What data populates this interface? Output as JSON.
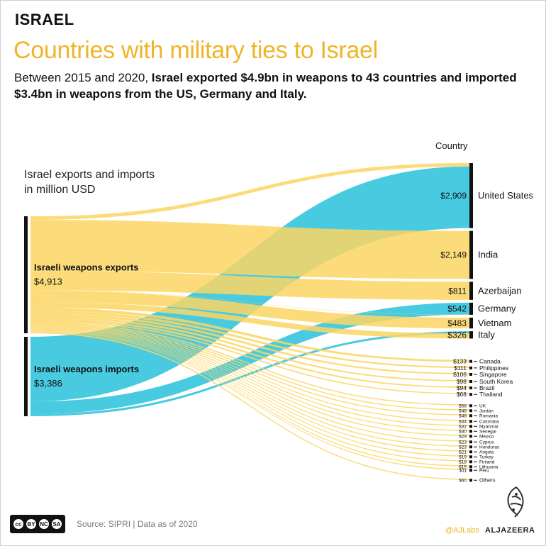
{
  "header": {
    "kicker": "ISRAEL",
    "title": "Countries with military ties to Israel",
    "subtitle_plain": "Between 2015 and 2020, ",
    "subtitle_bold": "Israel exported $4.9bn in weapons to 43 countries and imported $3.4bn in weapons from the US, Germany and Italy."
  },
  "footer": {
    "source": "Source: SIPRI | Data as of 2020",
    "handle": "@AJLabs",
    "brand": "ALJAZEERA",
    "license": [
      "cc",
      "BY",
      "NC",
      "SA"
    ]
  },
  "colors": {
    "exports": "#fcd663",
    "imports": "#38c5de",
    "bar": "#111111",
    "title": "#f0b429"
  },
  "chart_data": {
    "type": "sankey",
    "unit_label": "Israel exports and imports\nin million USD",
    "column_header": "Country",
    "sources": [
      {
        "id": "exports",
        "label": "Israeli weapons exports",
        "value": 4913,
        "value_label": "$4,913"
      },
      {
        "id": "imports",
        "label": "Israeli weapons imports",
        "value": 3386,
        "value_label": "$3,386"
      }
    ],
    "targets": [
      {
        "name": "United States",
        "value_label": "$2,909",
        "export": 151,
        "import": 2758
      },
      {
        "name": "India",
        "value_label": "$2,149",
        "export": 2149,
        "import": 0
      },
      {
        "name": "Azerbaijan",
        "value_label": "$811",
        "export": 811,
        "import": 0
      },
      {
        "name": "Germany",
        "value_label": "$542",
        "export": 10,
        "import": 532
      },
      {
        "name": "Vietnam",
        "value_label": "$483",
        "export": 483,
        "import": 0
      },
      {
        "name": "Italy",
        "value_label": "$326",
        "export": 230,
        "import": 96
      },
      {
        "name": "Canada",
        "value_label": "$133",
        "export": 133,
        "import": 0
      },
      {
        "name": "Philippines",
        "value_label": "$111",
        "export": 111,
        "import": 0
      },
      {
        "name": "Singapore",
        "value_label": "$106",
        "export": 106,
        "import": 0
      },
      {
        "name": "South Korea",
        "value_label": "$98",
        "export": 98,
        "import": 0
      },
      {
        "name": "Brazil",
        "value_label": "$94",
        "export": 94,
        "import": 0
      },
      {
        "name": "Thailand",
        "value_label": "$68",
        "export": 68,
        "import": 0
      },
      {
        "name": "UK",
        "value_label": "$58",
        "export": 58,
        "import": 0
      },
      {
        "name": "Jordan",
        "value_label": "$48",
        "export": 48,
        "import": 0
      },
      {
        "name": "Romania",
        "value_label": "$48",
        "export": 48,
        "import": 0
      },
      {
        "name": "Colombia",
        "value_label": "$34",
        "export": 34,
        "import": 0
      },
      {
        "name": "Myanmar",
        "value_label": "$32",
        "export": 32,
        "import": 0
      },
      {
        "name": "Senegal",
        "value_label": "$30",
        "export": 30,
        "import": 0
      },
      {
        "name": "Mexico",
        "value_label": "$29",
        "export": 29,
        "import": 0
      },
      {
        "name": "Cyprus",
        "value_label": "$23",
        "export": 23,
        "import": 0
      },
      {
        "name": "Honduras",
        "value_label": "$23",
        "export": 23,
        "import": 0
      },
      {
        "name": "Angola",
        "value_label": "$21",
        "export": 21,
        "import": 0
      },
      {
        "name": "Turkey",
        "value_label": "$19",
        "export": 19,
        "import": 0
      },
      {
        "name": "Finland",
        "value_label": "$18",
        "export": 18,
        "import": 0
      },
      {
        "name": "Lithuania",
        "value_label": "$15",
        "export": 15,
        "import": 0
      },
      {
        "name": "Peru",
        "value_label": "$11",
        "export": 11,
        "import": 0
      },
      {
        "name": "Others",
        "value_label": "$60",
        "export": 60,
        "import": 0
      }
    ]
  }
}
